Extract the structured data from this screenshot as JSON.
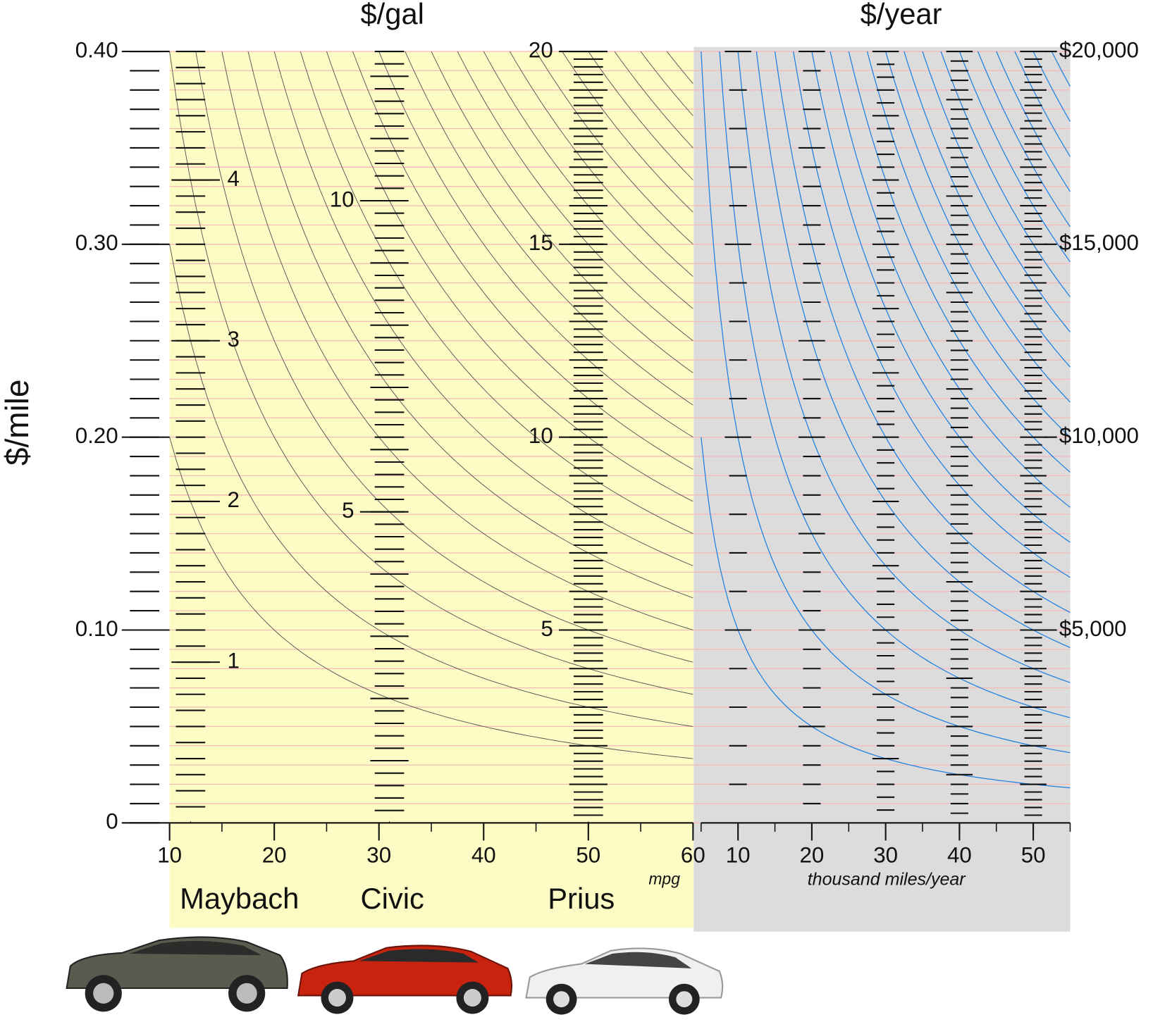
{
  "chart_data": {
    "type": "nomogram",
    "title_left": "$/gal",
    "title_right": "$/year",
    "ylabel": "$/mile",
    "xlabel": "mpg",
    "x2label": "thousand miles/year",
    "ylim": [
      0,
      0.4
    ],
    "yticks": [
      0,
      {
        "value": 0.1,
        "label": "0.10"
      },
      {
        "value": 0.2,
        "label": "0.20"
      },
      {
        "value": 0.3,
        "label": "0.30"
      },
      {
        "value": 0.4,
        "label": "0.40"
      }
    ],
    "yminor_step": 0.01,
    "grid": true,
    "y2lim": [
      0,
      20000
    ],
    "y2ticks": [
      {
        "value": 5000,
        "label": "$5,000"
      },
      {
        "value": 10000,
        "label": "$10,000"
      },
      {
        "value": 15000,
        "label": "$15,000"
      },
      {
        "value": 20000,
        "label": "$20,000"
      }
    ],
    "xlim": [
      10,
      60
    ],
    "xticks": [
      10,
      20,
      30,
      40,
      50,
      60
    ],
    "x2lim": [
      5,
      55
    ],
    "x2ticks": [
      10,
      20,
      30,
      40,
      50
    ],
    "column_step": 200,
    "price_curves": {
      "color": "#555555",
      "values": [
        2,
        3,
        4,
        5,
        6,
        7,
        8,
        9,
        10,
        11,
        12,
        13,
        14,
        15,
        16,
        17,
        18,
        19,
        20,
        21,
        22,
        23,
        24
      ]
    },
    "cost_curves": {
      "color": "#1e7fe0",
      "values": [
        1000,
        2000,
        3000,
        4000,
        5000,
        6000,
        7000,
        8000,
        9000,
        10000,
        11000,
        12000,
        13000,
        14000,
        15000,
        16000,
        17000,
        18000,
        19000,
        20000,
        21000,
        22000
      ]
    },
    "vehicles": [
      {
        "name": "Maybach",
        "mpg": 12,
        "minor_step": 0.1,
        "price_ticks": [
          1,
          2,
          3,
          4
        ]
      },
      {
        "name": "Civic",
        "mpg": 31,
        "minor_step": 0.2,
        "price_ticks": [
          5,
          10
        ]
      },
      {
        "name": "Prius",
        "mpg": 50,
        "minor_step": 0.2,
        "price_ticks": [
          5,
          10,
          15,
          20
        ]
      }
    ]
  }
}
